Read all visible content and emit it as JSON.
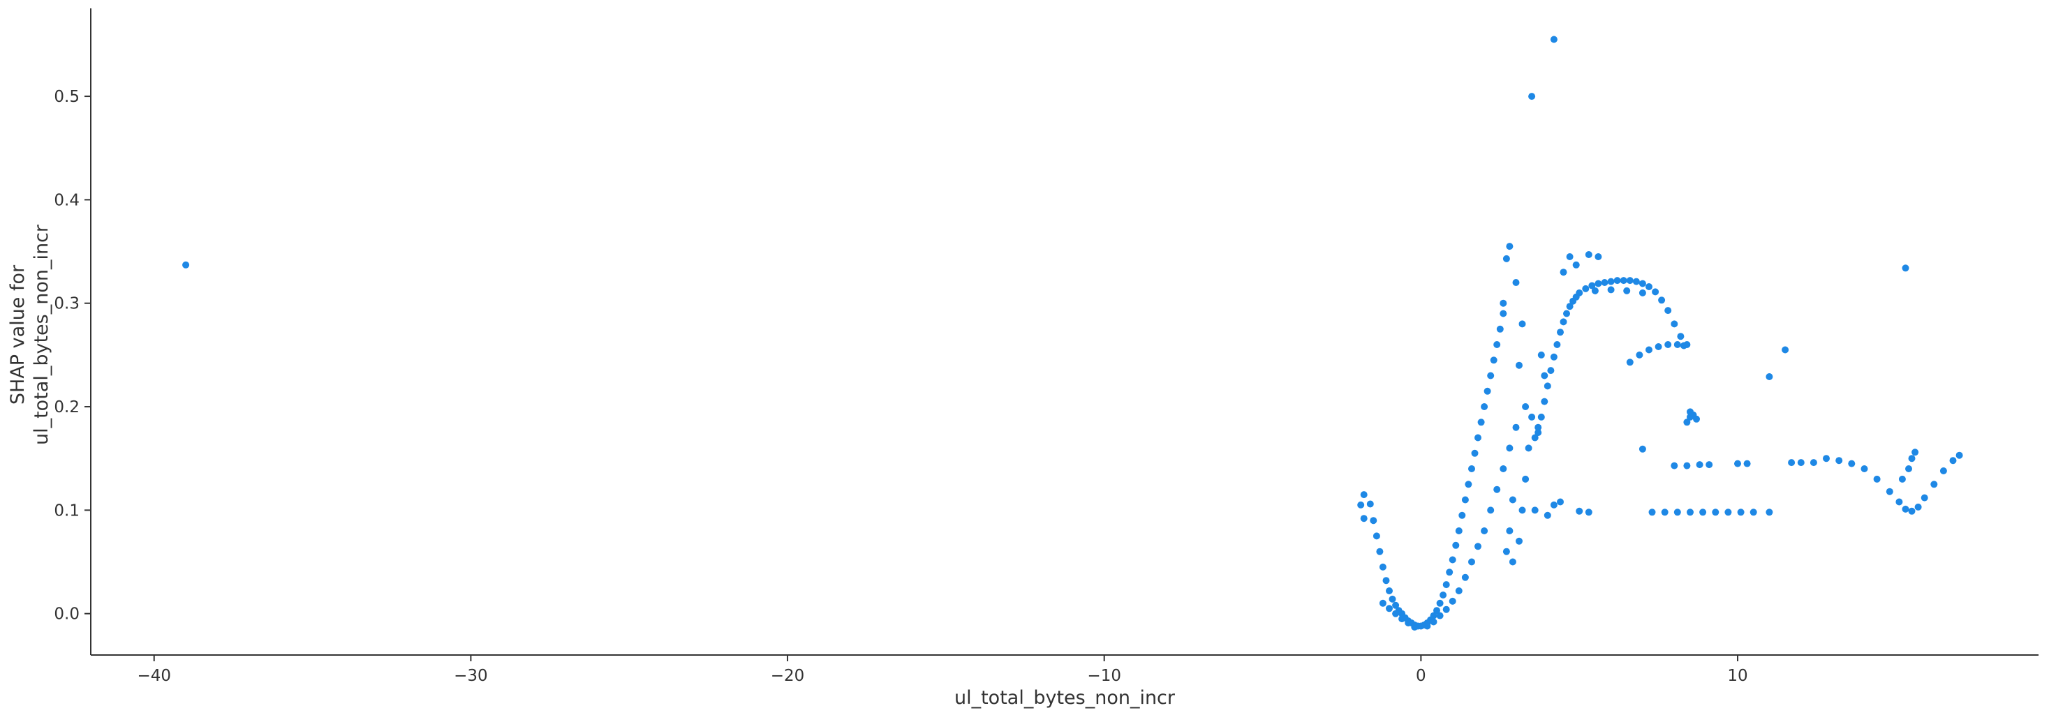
{
  "chart_data": {
    "type": "scatter",
    "title": "",
    "xlabel": "ul_total_bytes_non_incr",
    "ylabel_lines": [
      "SHAP value for",
      "ul_total_bytes_non_incr"
    ],
    "xlim": [
      -42,
      19.5
    ],
    "ylim": [
      -0.04,
      0.585
    ],
    "xticks": [
      -40,
      -30,
      -20,
      -10,
      0,
      10
    ],
    "yticks": [
      0.0,
      0.1,
      0.2,
      0.3,
      0.4,
      0.5
    ],
    "xtick_labels": [
      "−40",
      "−30",
      "−20",
      "−10",
      "0",
      "10"
    ],
    "ytick_labels": [
      "0.0",
      "0.1",
      "0.2",
      "0.3",
      "0.4",
      "0.5"
    ],
    "grid": false,
    "legend": "none",
    "point_color": "#1e88e5",
    "points": [
      [
        -39.0,
        0.337
      ],
      [
        3.5,
        0.5
      ],
      [
        4.2,
        0.555
      ],
      [
        15.3,
        0.334
      ],
      [
        11.5,
        0.255
      ],
      [
        11.0,
        0.229
      ],
      [
        7.0,
        0.159
      ],
      [
        4.7,
        0.345
      ],
      [
        4.9,
        0.337
      ],
      [
        5.3,
        0.347
      ],
      [
        5.6,
        0.345
      ],
      [
        4.5,
        0.33
      ],
      [
        3.8,
        0.25
      ],
      [
        3.9,
        0.23
      ],
      [
        3.7,
        0.18
      ],
      [
        3.6,
        0.1
      ],
      [
        4.0,
        0.095
      ],
      [
        4.4,
        0.108
      ],
      [
        4.2,
        0.105
      ],
      [
        5.0,
        0.099
      ],
      [
        5.3,
        0.098
      ],
      [
        2.7,
        0.343
      ],
      [
        2.8,
        0.355
      ],
      [
        2.6,
        0.3
      ],
      [
        -1.8,
        0.115
      ],
      [
        -1.9,
        0.105
      ],
      [
        -1.8,
        0.092
      ],
      [
        -1.6,
        0.106
      ],
      [
        -1.5,
        0.09
      ],
      [
        -1.4,
        0.075
      ],
      [
        -1.3,
        0.06
      ],
      [
        -1.2,
        0.045
      ],
      [
        -1.1,
        0.032
      ],
      [
        -1.0,
        0.022
      ],
      [
        -0.9,
        0.014
      ],
      [
        -0.8,
        0.008
      ],
      [
        -0.7,
        0.003
      ],
      [
        -0.6,
        0.0
      ],
      [
        -0.5,
        -0.004
      ],
      [
        -0.4,
        -0.007
      ],
      [
        -0.3,
        -0.009
      ],
      [
        -0.2,
        -0.011
      ],
      [
        -0.1,
        -0.012
      ],
      [
        0.0,
        -0.012
      ],
      [
        0.1,
        -0.011
      ],
      [
        0.2,
        -0.009
      ],
      [
        0.3,
        -0.006
      ],
      [
        0.4,
        -0.002
      ],
      [
        0.5,
        0.003
      ],
      [
        0.6,
        0.01
      ],
      [
        0.7,
        0.018
      ],
      [
        0.8,
        0.028
      ],
      [
        0.9,
        0.04
      ],
      [
        1.0,
        0.052
      ],
      [
        1.1,
        0.066
      ],
      [
        1.2,
        0.08
      ],
      [
        1.3,
        0.095
      ],
      [
        1.4,
        0.11
      ],
      [
        1.5,
        0.125
      ],
      [
        1.6,
        0.14
      ],
      [
        1.7,
        0.155
      ],
      [
        1.8,
        0.17
      ],
      [
        1.9,
        0.185
      ],
      [
        2.0,
        0.2
      ],
      [
        2.1,
        0.215
      ],
      [
        2.2,
        0.23
      ],
      [
        2.3,
        0.245
      ],
      [
        2.4,
        0.26
      ],
      [
        2.5,
        0.275
      ],
      [
        2.6,
        0.29
      ],
      [
        -1.2,
        0.01
      ],
      [
        -1.0,
        0.005
      ],
      [
        -0.8,
        0.0
      ],
      [
        -0.6,
        -0.005
      ],
      [
        -0.4,
        -0.009
      ],
      [
        -0.2,
        -0.013
      ],
      [
        0.2,
        -0.012
      ],
      [
        0.4,
        -0.008
      ],
      [
        0.6,
        -0.002
      ],
      [
        0.8,
        0.004
      ],
      [
        1.0,
        0.012
      ],
      [
        1.2,
        0.022
      ],
      [
        1.4,
        0.035
      ],
      [
        1.6,
        0.05
      ],
      [
        1.8,
        0.065
      ],
      [
        2.0,
        0.08
      ],
      [
        2.2,
        0.1
      ],
      [
        2.4,
        0.12
      ],
      [
        2.6,
        0.14
      ],
      [
        2.8,
        0.16
      ],
      [
        3.0,
        0.18
      ],
      [
        2.9,
        0.11
      ],
      [
        2.8,
        0.08
      ],
      [
        2.7,
        0.06
      ],
      [
        2.9,
        0.05
      ],
      [
        3.1,
        0.07
      ],
      [
        3.2,
        0.1
      ],
      [
        3.3,
        0.13
      ],
      [
        3.4,
        0.16
      ],
      [
        3.5,
        0.19
      ],
      [
        3.3,
        0.2
      ],
      [
        3.1,
        0.24
      ],
      [
        3.2,
        0.28
      ],
      [
        3.0,
        0.32
      ],
      [
        3.6,
        0.17
      ],
      [
        3.7,
        0.175
      ],
      [
        3.8,
        0.19
      ],
      [
        3.9,
        0.205
      ],
      [
        4.0,
        0.22
      ],
      [
        4.1,
        0.235
      ],
      [
        4.2,
        0.248
      ],
      [
        4.3,
        0.26
      ],
      [
        4.4,
        0.272
      ],
      [
        4.5,
        0.282
      ],
      [
        4.6,
        0.29
      ],
      [
        4.7,
        0.297
      ],
      [
        4.8,
        0.302
      ],
      [
        4.9,
        0.306
      ],
      [
        5.0,
        0.31
      ],
      [
        5.2,
        0.314
      ],
      [
        5.4,
        0.317
      ],
      [
        5.6,
        0.319
      ],
      [
        5.8,
        0.32
      ],
      [
        6.0,
        0.321
      ],
      [
        6.2,
        0.322
      ],
      [
        6.4,
        0.322
      ],
      [
        6.6,
        0.322
      ],
      [
        6.8,
        0.321
      ],
      [
        7.0,
        0.319
      ],
      [
        7.2,
        0.316
      ],
      [
        7.4,
        0.311
      ],
      [
        7.6,
        0.303
      ],
      [
        7.8,
        0.293
      ],
      [
        8.0,
        0.28
      ],
      [
        8.2,
        0.268
      ],
      [
        8.4,
        0.26
      ],
      [
        5.5,
        0.312
      ],
      [
        6.0,
        0.313
      ],
      [
        6.5,
        0.312
      ],
      [
        7.0,
        0.31
      ],
      [
        6.6,
        0.243
      ],
      [
        6.9,
        0.25
      ],
      [
        7.2,
        0.255
      ],
      [
        7.5,
        0.258
      ],
      [
        7.8,
        0.26
      ],
      [
        8.1,
        0.26
      ],
      [
        8.3,
        0.259
      ],
      [
        8.4,
        0.185
      ],
      [
        8.5,
        0.19
      ],
      [
        8.6,
        0.192
      ],
      [
        8.7,
        0.188
      ],
      [
        8.5,
        0.195
      ],
      [
        7.3,
        0.098
      ],
      [
        7.7,
        0.098
      ],
      [
        8.1,
        0.098
      ],
      [
        8.5,
        0.098
      ],
      [
        8.9,
        0.098
      ],
      [
        9.3,
        0.098
      ],
      [
        9.7,
        0.098
      ],
      [
        10.1,
        0.098
      ],
      [
        10.5,
        0.098
      ],
      [
        11.0,
        0.098
      ],
      [
        8.0,
        0.143
      ],
      [
        8.4,
        0.143
      ],
      [
        8.8,
        0.144
      ],
      [
        9.1,
        0.144
      ],
      [
        10.0,
        0.145
      ],
      [
        10.3,
        0.145
      ],
      [
        11.7,
        0.146
      ],
      [
        12.0,
        0.146
      ],
      [
        12.4,
        0.146
      ],
      [
        12.8,
        0.15
      ],
      [
        13.2,
        0.148
      ],
      [
        13.6,
        0.145
      ],
      [
        14.0,
        0.14
      ],
      [
        14.4,
        0.13
      ],
      [
        14.8,
        0.118
      ],
      [
        15.1,
        0.108
      ],
      [
        15.3,
        0.101
      ],
      [
        15.5,
        0.099
      ],
      [
        15.7,
        0.103
      ],
      [
        15.9,
        0.112
      ],
      [
        16.2,
        0.125
      ],
      [
        16.5,
        0.138
      ],
      [
        16.8,
        0.148
      ],
      [
        17.0,
        0.153
      ],
      [
        15.4,
        0.14
      ],
      [
        15.5,
        0.15
      ],
      [
        15.6,
        0.156
      ],
      [
        15.2,
        0.13
      ]
    ]
  }
}
